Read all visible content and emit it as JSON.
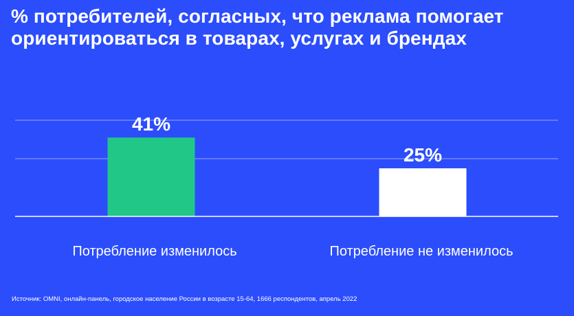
{
  "title_lines": [
    "% потребителей, согласных, что реклама помогает",
    "ориентироваться в товарах, услугах и брендах"
  ],
  "source": "Источник: OMNI, онлайн-панель, городское население России в возрасте 15-64, 1666 респондентов, апрель 2022",
  "colors": {
    "background": "#2b4dfc",
    "bar_changed": "#21c787",
    "bar_unchanged": "#ffffff",
    "gridline": "#9aa8ff",
    "axis": "#ffffff"
  },
  "chart_data": {
    "type": "bar",
    "title": "% потребителей, согласных, что реклама помогает ориентироваться в товарах, услугах и брендах",
    "categories": [
      "Потребление изменилось",
      "Потребление не изменилось"
    ],
    "values": [
      41,
      25
    ],
    "value_labels": [
      "41%",
      "25%"
    ],
    "bar_colors": [
      "#21c787",
      "#ffffff"
    ],
    "ylim": [
      0,
      60
    ],
    "grid": true,
    "xlabel": "",
    "ylabel": ""
  }
}
